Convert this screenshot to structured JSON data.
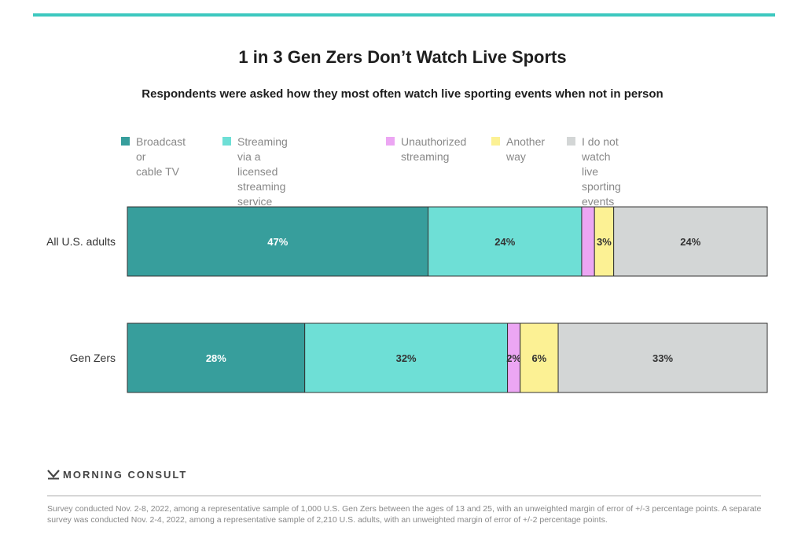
{
  "page": {
    "accent_color": "#3cc8bf",
    "brand": "MORNING CONSULT",
    "footnote": "Survey conducted Nov. 2-8, 2022, among a representative sample of 1,000 U.S. Gen Zers between the ages of 13 and 25, with an unweighted margin of error of +/-3 percentage points. A separate survey was conducted Nov. 2-4, 2022, among a representative sample of 2,210 U.S. adults, with an unweighted margin of error of +/-2 percentage points."
  },
  "chart_data": {
    "type": "bar",
    "orientation": "horizontal",
    "stacked": true,
    "title": "1 in 3 Gen Zers Don’t Watch Live Sports",
    "subtitle": "Respondents were asked how they most often watch live sporting events when not in person",
    "xlabel": "",
    "ylabel": "",
    "xlim": [
      0,
      100
    ],
    "grid": false,
    "legend_position": "top",
    "categories": [
      "All U.S. adults",
      "Gen Zers"
    ],
    "series": [
      {
        "name": "Broadcast or\ncable TV",
        "color": "#379e9c",
        "label_color": "#ffffff",
        "values": [
          47,
          28
        ],
        "labels": [
          "47%",
          "28%"
        ]
      },
      {
        "name": "Streaming via a licensed\nstreaming service",
        "color": "#6edfd6",
        "label_color": "#333333",
        "values": [
          24,
          32
        ],
        "labels": [
          "24%",
          "32%"
        ]
      },
      {
        "name": "Unauthorized\nstreaming",
        "color": "#eca6f3",
        "label_color": "#333333",
        "values": [
          2,
          2
        ],
        "labels": [
          "",
          "2%"
        ]
      },
      {
        "name": "Another\nway",
        "color": "#fcf194",
        "label_color": "#333333",
        "values": [
          3,
          6
        ],
        "labels": [
          "3%",
          "6%"
        ]
      },
      {
        "name": "I do not watch\nlive sporting events",
        "color": "#d3d6d6",
        "label_color": "#333333",
        "values": [
          24,
          33
        ],
        "labels": [
          "24%",
          "33%"
        ]
      }
    ]
  }
}
